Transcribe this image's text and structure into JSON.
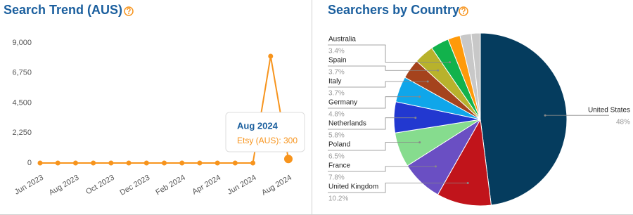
{
  "chart_data": [
    {
      "type": "line",
      "title": "Search Trend (AUS)",
      "x": [
        "Jun 2023",
        null,
        "Aug 2023",
        null,
        "Oct 2023",
        null,
        "Dec 2023",
        null,
        "Feb 2024",
        null,
        "Apr 2024",
        null,
        "Jun 2024",
        null,
        "Aug 2024"
      ],
      "values": [
        0,
        0,
        0,
        0,
        0,
        0,
        0,
        0,
        0,
        0,
        0,
        0,
        0,
        8000,
        300
      ],
      "color": "#f7941d",
      "ylim": [
        0,
        9000
      ],
      "yticks": [
        0,
        {
          "value": 2250,
          "label": "2,250"
        },
        {
          "value": 4500,
          "label": "4,500"
        },
        {
          "value": 6750,
          "label": "6,750"
        },
        {
          "value": 9000,
          "label": "9,000"
        }
      ],
      "tooltip": {
        "title": "Aug 2024",
        "label": "Etsy (AUS): 300"
      }
    },
    {
      "type": "pie",
      "title": "Searchers by Country",
      "categories": [
        "United States",
        "United Kingdom",
        "France",
        "Poland",
        "Netherlands",
        "Germany",
        "Italy",
        "Spain",
        "Australia",
        null,
        null,
        null
      ],
      "values": [
        48,
        10.2,
        7.8,
        6.5,
        5.8,
        4.8,
        3.7,
        3.7,
        3.4,
        2.3,
        2.1,
        1.7
      ],
      "value_labels": [
        "48%",
        "10.2%",
        "7.8%",
        "6.5%",
        "5.8%",
        "4.8%",
        "3.7%",
        "3.7%",
        "3.4%",
        null,
        null,
        null
      ],
      "colors": [
        "#053c5e",
        "#c1141b",
        "#6a4fc3",
        "#86dc8e",
        "#2238d0",
        "#0fa6ea",
        "#a5431d",
        "#b8b22c",
        "#12b24c",
        "#ff9a0a",
        "#c8c8c8",
        "#c8c8c8"
      ]
    }
  ]
}
